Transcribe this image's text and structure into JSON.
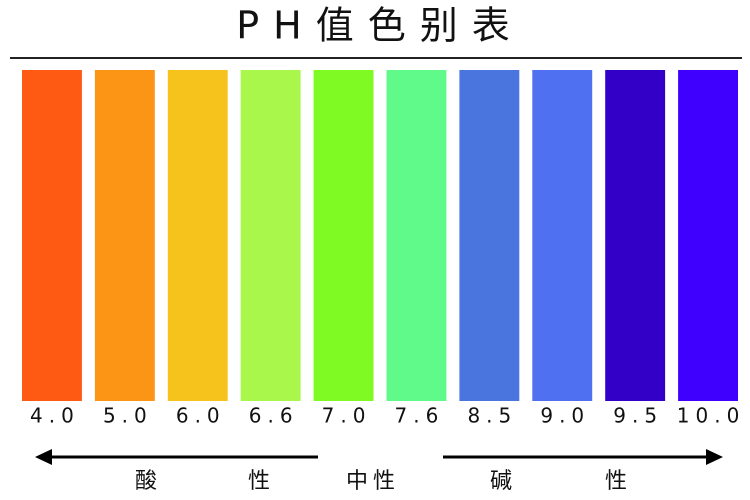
{
  "title": "PH值色别表",
  "swatches": [
    {
      "label": "4.0",
      "color": "#ff5a14"
    },
    {
      "label": "5.0",
      "color": "#fc9416"
    },
    {
      "label": "6.0",
      "color": "#f6c31c"
    },
    {
      "label": "6.6",
      "color": "#a9f74b"
    },
    {
      "label": "7.0",
      "color": "#7ffa22"
    },
    {
      "label": "7.6",
      "color": "#60fa8a"
    },
    {
      "label": "8.5",
      "color": "#4a75df"
    },
    {
      "label": "9.0",
      "color": "#4e70f1"
    },
    {
      "label": "9.5",
      "color": "#3300c8"
    },
    {
      "label": "10.0",
      "color": "#3f00fd"
    }
  ],
  "scale": {
    "acid": "酸性",
    "neutral": "中性",
    "base": "碱性"
  }
}
